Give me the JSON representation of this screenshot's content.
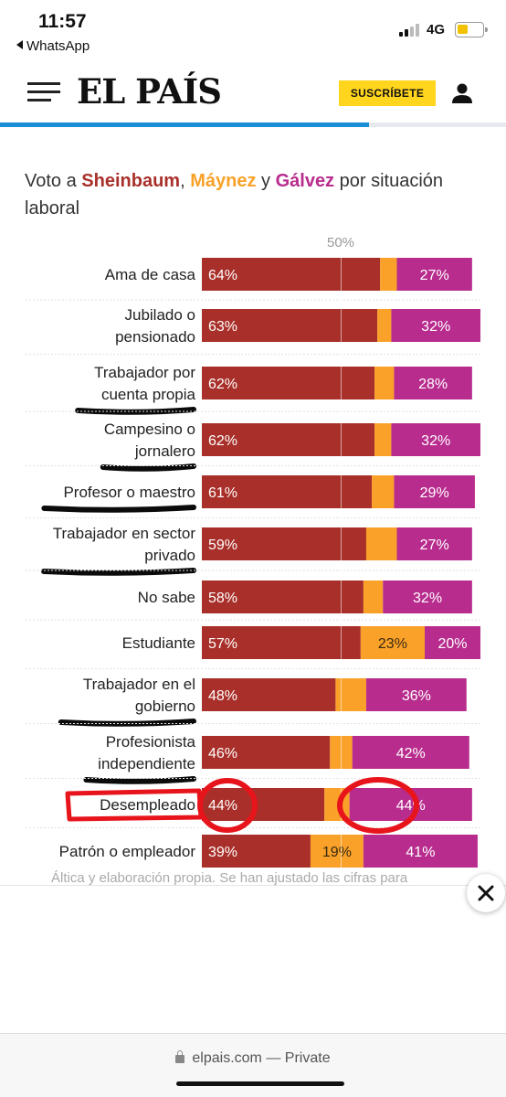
{
  "status_bar": {
    "time": "11:57",
    "back_app": "WhatsApp",
    "network": "4G"
  },
  "header": {
    "logo": "EL PAÍS",
    "subscribe_label": "SUSCRÍBETE"
  },
  "chart_data": {
    "type": "bar",
    "stacked": true,
    "orientation": "horizontal",
    "title_parts": [
      "Voto a ",
      "Sheinbaum",
      ", ",
      "Máynez",
      " y ",
      "Gálvez",
      " por situación laboral"
    ],
    "reference_line_label": "50%",
    "categories": [
      "Ama de casa",
      "Jubilado o pensionado",
      "Trabajador por cuenta propia",
      "Campesino o jornalero",
      "Profesor o maestro",
      "Trabajador en sector privado",
      "No sabe",
      "Estudiante",
      "Trabajador en el gobierno",
      "Profesionista independiente",
      "Desempleado",
      "Patrón o empleador"
    ],
    "category_lines": [
      [
        "Ama de casa"
      ],
      [
        "Jubilado o",
        "pensionado"
      ],
      [
        "Trabajador por",
        "cuenta propia"
      ],
      [
        "Campesino o",
        "jornalero"
      ],
      [
        "Profesor o maestro"
      ],
      [
        "Trabajador en sector",
        "privado"
      ],
      [
        "No sabe"
      ],
      [
        "Estudiante"
      ],
      [
        "Trabajador en el",
        "gobierno"
      ],
      [
        "Profesionista",
        "independiente"
      ],
      [
        "Desempleado"
      ],
      [
        "Patrón o empleador"
      ]
    ],
    "series": [
      {
        "name": "Sheinbaum",
        "color": "#a9302a",
        "values": [
          64,
          63,
          62,
          62,
          61,
          59,
          58,
          57,
          48,
          46,
          44,
          39
        ]
      },
      {
        "name": "Máynez",
        "color": "#f9a128",
        "values": [
          6,
          5,
          7,
          6,
          8,
          11,
          7,
          23,
          11,
          8,
          9,
          19
        ]
      },
      {
        "name": "Gálvez",
        "color": "#b82c8e",
        "values": [
          27,
          32,
          28,
          32,
          29,
          27,
          32,
          20,
          36,
          42,
          44,
          41
        ]
      }
    ],
    "value_labels": [
      [
        "64%",
        "",
        "27%"
      ],
      [
        "63%",
        "",
        "32%"
      ],
      [
        "62%",
        "",
        "28%"
      ],
      [
        "62%",
        "",
        "32%"
      ],
      [
        "61%",
        "",
        "29%"
      ],
      [
        "59%",
        "",
        "27%"
      ],
      [
        "58%",
        "",
        "32%"
      ],
      [
        "57%",
        "23%",
        "20%"
      ],
      [
        "48%",
        "",
        "36%"
      ],
      [
        "46%",
        "",
        "42%"
      ],
      [
        "44%",
        "",
        "44%"
      ],
      [
        "39%",
        "19%",
        "41%"
      ]
    ],
    "xlim": [
      0,
      100
    ],
    "underlined_categories": [
      2,
      3,
      4,
      5,
      8,
      9
    ],
    "circled_category": 10,
    "annotation_color": "#e8141c"
  },
  "source_text": "Áltica y elaboración propia. Se han ajustado las cifras para",
  "browser": {
    "url": "elpais.com",
    "mode": "— Private"
  }
}
